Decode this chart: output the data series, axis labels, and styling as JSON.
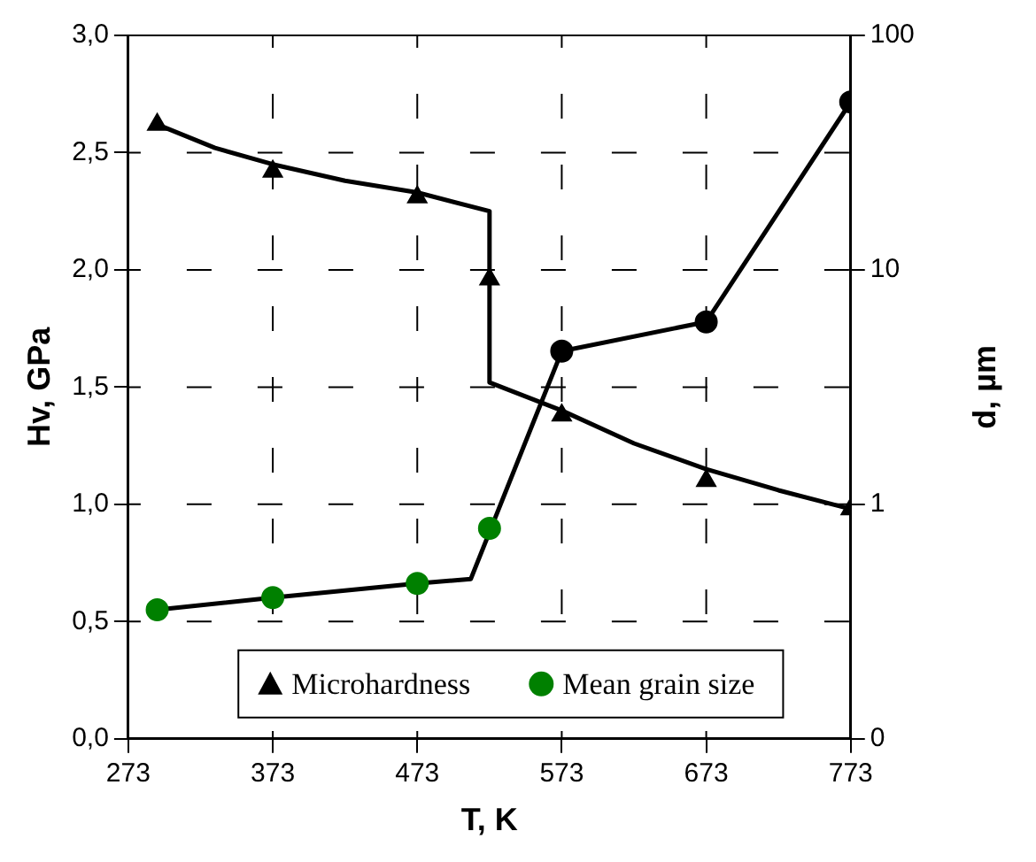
{
  "chart_data": {
    "type": "scatter",
    "xlabel": "T, K",
    "ylabel": "Hv, GPa",
    "y2label": "d, µm",
    "xlim": [
      273,
      773
    ],
    "xticks": [
      273,
      373,
      473,
      573,
      673,
      773
    ],
    "ylim": [
      0,
      3
    ],
    "yticks": [
      {
        "value": 0,
        "label": "0,0"
      },
      {
        "value": 0.5,
        "label": "0,5"
      },
      {
        "value": 1,
        "label": "1,0"
      },
      {
        "value": 1.5,
        "label": "1,5"
      },
      {
        "value": 2,
        "label": "2,0"
      },
      {
        "value": 2.5,
        "label": "2,5"
      },
      {
        "value": 3,
        "label": "3,0"
      }
    ],
    "y2lim": [
      0.1,
      100
    ],
    "y2ticks": [
      {
        "value": 0.1,
        "label": "0"
      },
      1,
      10,
      100
    ],
    "log": "y2",
    "grid": true,
    "legend": "bottom",
    "series": [
      {
        "name": "Microhardness",
        "marker": "triangle",
        "color": "#000000",
        "x": [
          293,
          373,
          473,
          523,
          573,
          673,
          773
        ],
        "values": [
          2.62,
          2.42,
          2.31,
          1.96,
          1.38,
          1.1,
          0.98
        ]
      },
      {
        "name": "Mean grain size",
        "marker": "circle",
        "axis": "y2",
        "color": "#008000",
        "colors": [
          "#008000",
          "#008000",
          "#008000",
          "#008000",
          "#000000",
          "#000000",
          "#000000"
        ],
        "x": [
          293,
          373,
          473,
          523,
          573,
          673,
          773
        ],
        "values": [
          0.355,
          0.4,
          0.46,
          0.79,
          4.5,
          6.0,
          52
        ]
      },
      {
        "type": "line",
        "marker": "none",
        "line_style": "solid",
        "color": "#000000",
        "x": [
          293,
          333,
          373,
          423,
          473,
          523,
          523,
          573,
          623,
          673,
          723,
          773
        ],
        "values": [
          2.62,
          2.52,
          2.45,
          2.38,
          2.33,
          2.25,
          1.52,
          1.4,
          1.26,
          1.15,
          1.06,
          0.98
        ]
      },
      {
        "type": "line",
        "marker": "none",
        "line_style": "solid",
        "axis": "y2",
        "color": "#000000",
        "x": [
          293,
          373,
          473,
          510,
          573,
          673,
          773
        ],
        "values": [
          0.355,
          0.4,
          0.46,
          0.48,
          4.5,
          6.0,
          52
        ]
      }
    ]
  }
}
